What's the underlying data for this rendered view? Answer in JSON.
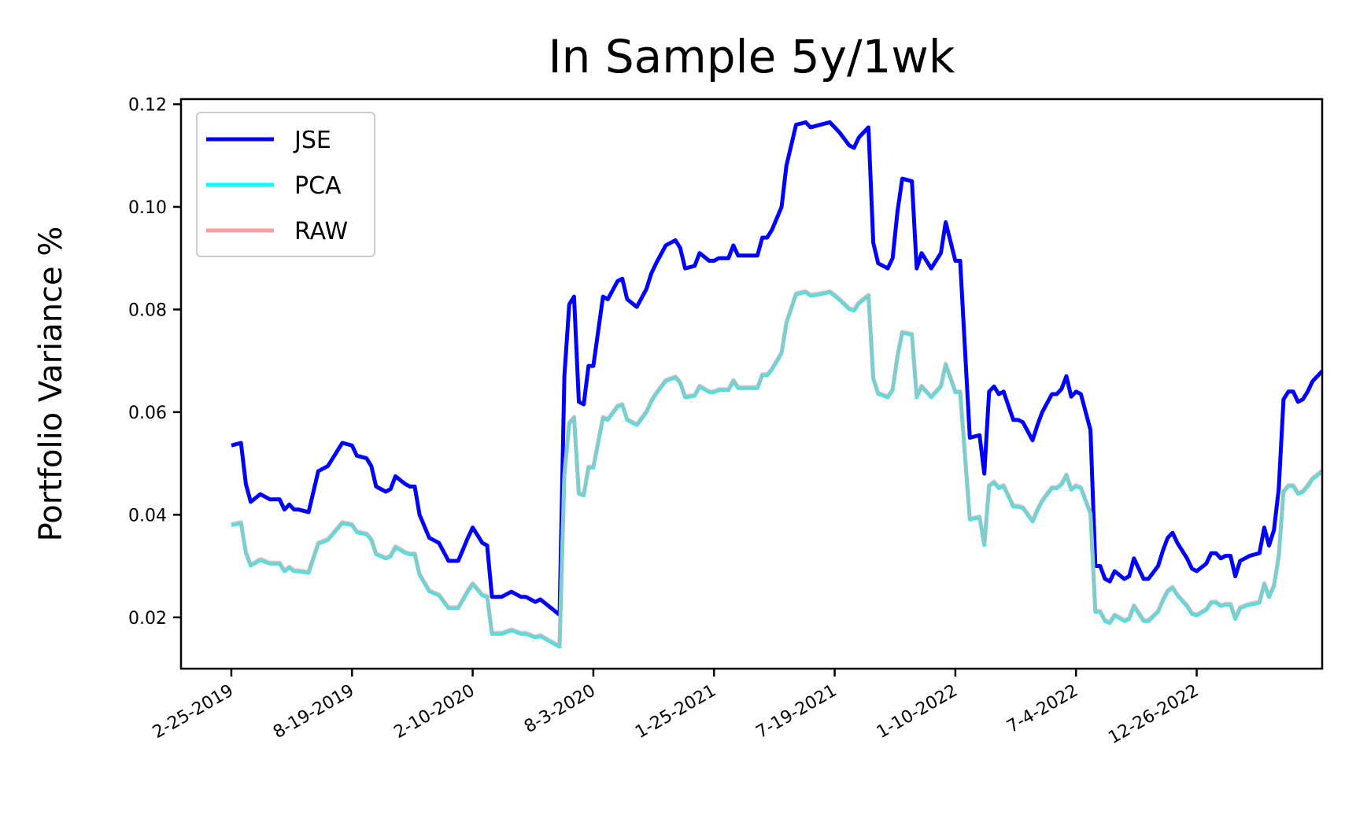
{
  "chart_data": {
    "type": "line",
    "title": "In Sample 5y/1wk",
    "xlabel": "",
    "ylabel": "Portfolio Variance %",
    "ylim": [
      0.01,
      0.121
    ],
    "xlim": [
      "2018-12-14",
      "2023-06-26"
    ],
    "x_ticks": [
      {
        "date": "2019-02-25",
        "label": "2-25-2019"
      },
      {
        "date": "2019-08-19",
        "label": "8-19-2019"
      },
      {
        "date": "2020-02-10",
        "label": "2-10-2020"
      },
      {
        "date": "2020-08-03",
        "label": "8-3-2020"
      },
      {
        "date": "2021-01-25",
        "label": "1-25-2021"
      },
      {
        "date": "2021-07-19",
        "label": "7-19-2021"
      },
      {
        "date": "2022-01-10",
        "label": "1-10-2022"
      },
      {
        "date": "2022-07-04",
        "label": "7-4-2022"
      },
      {
        "date": "2022-12-26",
        "label": "12-26-2022"
      }
    ],
    "y_ticks": [
      {
        "value": 0.02,
        "label": "0.02"
      },
      {
        "value": 0.04,
        "label": "0.04"
      },
      {
        "value": 0.06,
        "label": "0.06"
      },
      {
        "value": 0.08,
        "label": "0.08"
      },
      {
        "value": 0.1,
        "label": "0.10"
      },
      {
        "value": 0.12,
        "label": "0.12"
      }
    ],
    "grid": false,
    "legend_position": "top-left",
    "series": [
      {
        "name": "JSE",
        "color": "#0000ff",
        "points": [
          [
            "2019-02-25",
            0.0535
          ],
          [
            "2019-03-11",
            0.054
          ],
          [
            "2019-03-18",
            0.046
          ],
          [
            "2019-03-25",
            0.0425
          ],
          [
            "2019-04-08",
            0.044
          ],
          [
            "2019-04-22",
            0.043
          ],
          [
            "2019-05-06",
            0.043
          ],
          [
            "2019-05-13",
            0.041
          ],
          [
            "2019-05-20",
            0.042
          ],
          [
            "2019-05-27",
            0.041
          ],
          [
            "2019-06-03",
            0.041
          ],
          [
            "2019-06-17",
            0.0405
          ],
          [
            "2019-07-01",
            0.0485
          ],
          [
            "2019-07-15",
            0.0495
          ],
          [
            "2019-07-29",
            0.0525
          ],
          [
            "2019-08-05",
            0.054
          ],
          [
            "2019-08-19",
            0.0535
          ],
          [
            "2019-08-26",
            0.0515
          ],
          [
            "2019-09-09",
            0.051
          ],
          [
            "2019-09-16",
            0.0495
          ],
          [
            "2019-09-23",
            0.0455
          ],
          [
            "2019-10-07",
            0.0445
          ],
          [
            "2019-10-14",
            0.045
          ],
          [
            "2019-10-21",
            0.0475
          ],
          [
            "2019-11-04",
            0.046
          ],
          [
            "2019-11-11",
            0.0455
          ],
          [
            "2019-11-18",
            0.0455
          ],
          [
            "2019-11-25",
            0.04
          ],
          [
            "2019-12-09",
            0.0355
          ],
          [
            "2019-12-23",
            0.0345
          ],
          [
            "2020-01-06",
            0.031
          ],
          [
            "2020-01-20",
            0.031
          ],
          [
            "2020-02-03",
            0.0355
          ],
          [
            "2020-02-10",
            0.0375
          ],
          [
            "2020-02-24",
            0.0345
          ],
          [
            "2020-03-02",
            0.034
          ],
          [
            "2020-03-09",
            0.024
          ],
          [
            "2020-03-23",
            0.024
          ],
          [
            "2020-04-06",
            0.025
          ],
          [
            "2020-04-20",
            0.024
          ],
          [
            "2020-04-27",
            0.024
          ],
          [
            "2020-05-11",
            0.023
          ],
          [
            "2020-05-18",
            0.0235
          ],
          [
            "2020-06-01",
            0.022
          ],
          [
            "2020-06-15",
            0.0205
          ],
          [
            "2020-06-22",
            0.067
          ],
          [
            "2020-06-29",
            0.081
          ],
          [
            "2020-07-06",
            0.0825
          ],
          [
            "2020-07-13",
            0.062
          ],
          [
            "2020-07-20",
            0.0615
          ],
          [
            "2020-07-27",
            0.069
          ],
          [
            "2020-08-03",
            0.069
          ],
          [
            "2020-08-17",
            0.0825
          ],
          [
            "2020-08-24",
            0.082
          ],
          [
            "2020-09-07",
            0.0855
          ],
          [
            "2020-09-14",
            0.086
          ],
          [
            "2020-09-21",
            0.082
          ],
          [
            "2020-10-05",
            0.0805
          ],
          [
            "2020-10-19",
            0.084
          ],
          [
            "2020-10-26",
            0.087
          ],
          [
            "2020-11-02",
            0.089
          ],
          [
            "2020-11-16",
            0.0925
          ],
          [
            "2020-11-30",
            0.0935
          ],
          [
            "2020-12-07",
            0.092
          ],
          [
            "2020-12-14",
            0.088
          ],
          [
            "2020-12-28",
            0.0885
          ],
          [
            "2021-01-04",
            0.091
          ],
          [
            "2021-01-18",
            0.0895
          ],
          [
            "2021-01-25",
            0.0895
          ],
          [
            "2021-02-01",
            0.09
          ],
          [
            "2021-02-15",
            0.09
          ],
          [
            "2021-02-22",
            0.0925
          ],
          [
            "2021-03-01",
            0.0905
          ],
          [
            "2021-03-08",
            0.0905
          ],
          [
            "2021-03-15",
            0.0905
          ],
          [
            "2021-03-29",
            0.0905
          ],
          [
            "2021-04-05",
            0.094
          ],
          [
            "2021-04-12",
            0.094
          ],
          [
            "2021-04-19",
            0.0955
          ],
          [
            "2021-05-03",
            0.1
          ],
          [
            "2021-05-10",
            0.108
          ],
          [
            "2021-05-24",
            0.116
          ],
          [
            "2021-06-07",
            0.1165
          ],
          [
            "2021-06-14",
            0.1155
          ],
          [
            "2021-06-28",
            0.116
          ],
          [
            "2021-07-12",
            0.1165
          ],
          [
            "2021-07-19",
            0.1155
          ],
          [
            "2021-07-26",
            0.1145
          ],
          [
            "2021-08-09",
            0.112
          ],
          [
            "2021-08-16",
            0.1115
          ],
          [
            "2021-08-23",
            0.1135
          ],
          [
            "2021-09-06",
            0.1155
          ],
          [
            "2021-09-13",
            0.093
          ],
          [
            "2021-09-20",
            0.089
          ],
          [
            "2021-10-04",
            0.088
          ],
          [
            "2021-10-11",
            0.09
          ],
          [
            "2021-10-18",
            0.099
          ],
          [
            "2021-10-25",
            0.1055
          ],
          [
            "2021-11-08",
            0.105
          ],
          [
            "2021-11-15",
            0.088
          ],
          [
            "2021-11-22",
            0.091
          ],
          [
            "2021-12-06",
            0.088
          ],
          [
            "2021-12-20",
            0.091
          ],
          [
            "2021-12-27",
            0.097
          ],
          [
            "2022-01-10",
            0.0895
          ],
          [
            "2022-01-17",
            0.0895
          ],
          [
            "2022-01-31",
            0.055
          ],
          [
            "2022-02-14",
            0.0555
          ],
          [
            "2022-02-21",
            0.048
          ],
          [
            "2022-02-28",
            0.064
          ],
          [
            "2022-03-07",
            0.065
          ],
          [
            "2022-03-14",
            0.0635
          ],
          [
            "2022-03-21",
            0.064
          ],
          [
            "2022-04-04",
            0.0585
          ],
          [
            "2022-04-11",
            0.0585
          ],
          [
            "2022-04-18",
            0.058
          ],
          [
            "2022-05-02",
            0.0545
          ],
          [
            "2022-05-09",
            0.0575
          ],
          [
            "2022-05-16",
            0.06
          ],
          [
            "2022-05-30",
            0.0635
          ],
          [
            "2022-06-06",
            0.0635
          ],
          [
            "2022-06-13",
            0.0645
          ],
          [
            "2022-06-20",
            0.067
          ],
          [
            "2022-06-27",
            0.063
          ],
          [
            "2022-07-04",
            0.064
          ],
          [
            "2022-07-11",
            0.0635
          ],
          [
            "2022-07-25",
            0.0565
          ],
          [
            "2022-08-01",
            0.03
          ],
          [
            "2022-08-08",
            0.03
          ],
          [
            "2022-08-15",
            0.0275
          ],
          [
            "2022-08-22",
            0.027
          ],
          [
            "2022-08-29",
            0.029
          ],
          [
            "2022-09-12",
            0.0275
          ],
          [
            "2022-09-19",
            0.028
          ],
          [
            "2022-09-26",
            0.0315
          ],
          [
            "2022-10-10",
            0.0275
          ],
          [
            "2022-10-17",
            0.0275
          ],
          [
            "2022-10-31",
            0.03
          ],
          [
            "2022-11-07",
            0.033
          ],
          [
            "2022-11-14",
            0.0355
          ],
          [
            "2022-11-21",
            0.0365
          ],
          [
            "2022-11-28",
            0.0345
          ],
          [
            "2022-12-12",
            0.0315
          ],
          [
            "2022-12-19",
            0.0295
          ],
          [
            "2022-12-26",
            0.029
          ],
          [
            "2023-01-09",
            0.0305
          ],
          [
            "2023-01-16",
            0.0325
          ],
          [
            "2023-01-23",
            0.0325
          ],
          [
            "2023-01-30",
            0.0315
          ],
          [
            "2023-02-06",
            0.032
          ],
          [
            "2023-02-13",
            0.032
          ],
          [
            "2023-02-20",
            0.028
          ],
          [
            "2023-02-27",
            0.031
          ],
          [
            "2023-03-06",
            0.0315
          ],
          [
            "2023-03-13",
            0.032
          ],
          [
            "2023-03-27",
            0.0325
          ],
          [
            "2023-04-03",
            0.0375
          ],
          [
            "2023-04-10",
            0.034
          ],
          [
            "2023-04-17",
            0.037
          ],
          [
            "2023-04-24",
            0.045
          ],
          [
            "2023-05-01",
            0.0625
          ],
          [
            "2023-05-08",
            0.064
          ],
          [
            "2023-05-15",
            0.064
          ],
          [
            "2023-05-22",
            0.062
          ],
          [
            "2023-05-29",
            0.0625
          ],
          [
            "2023-06-05",
            0.064
          ],
          [
            "2023-06-12",
            0.066
          ],
          [
            "2023-06-19",
            0.067
          ],
          [
            "2023-06-26",
            0.068
          ]
        ]
      },
      {
        "name": "PCA",
        "color": "#00ffff",
        "points": []
      },
      {
        "name": "RAW",
        "color": "#f4a0a0",
        "points": []
      }
    ]
  }
}
